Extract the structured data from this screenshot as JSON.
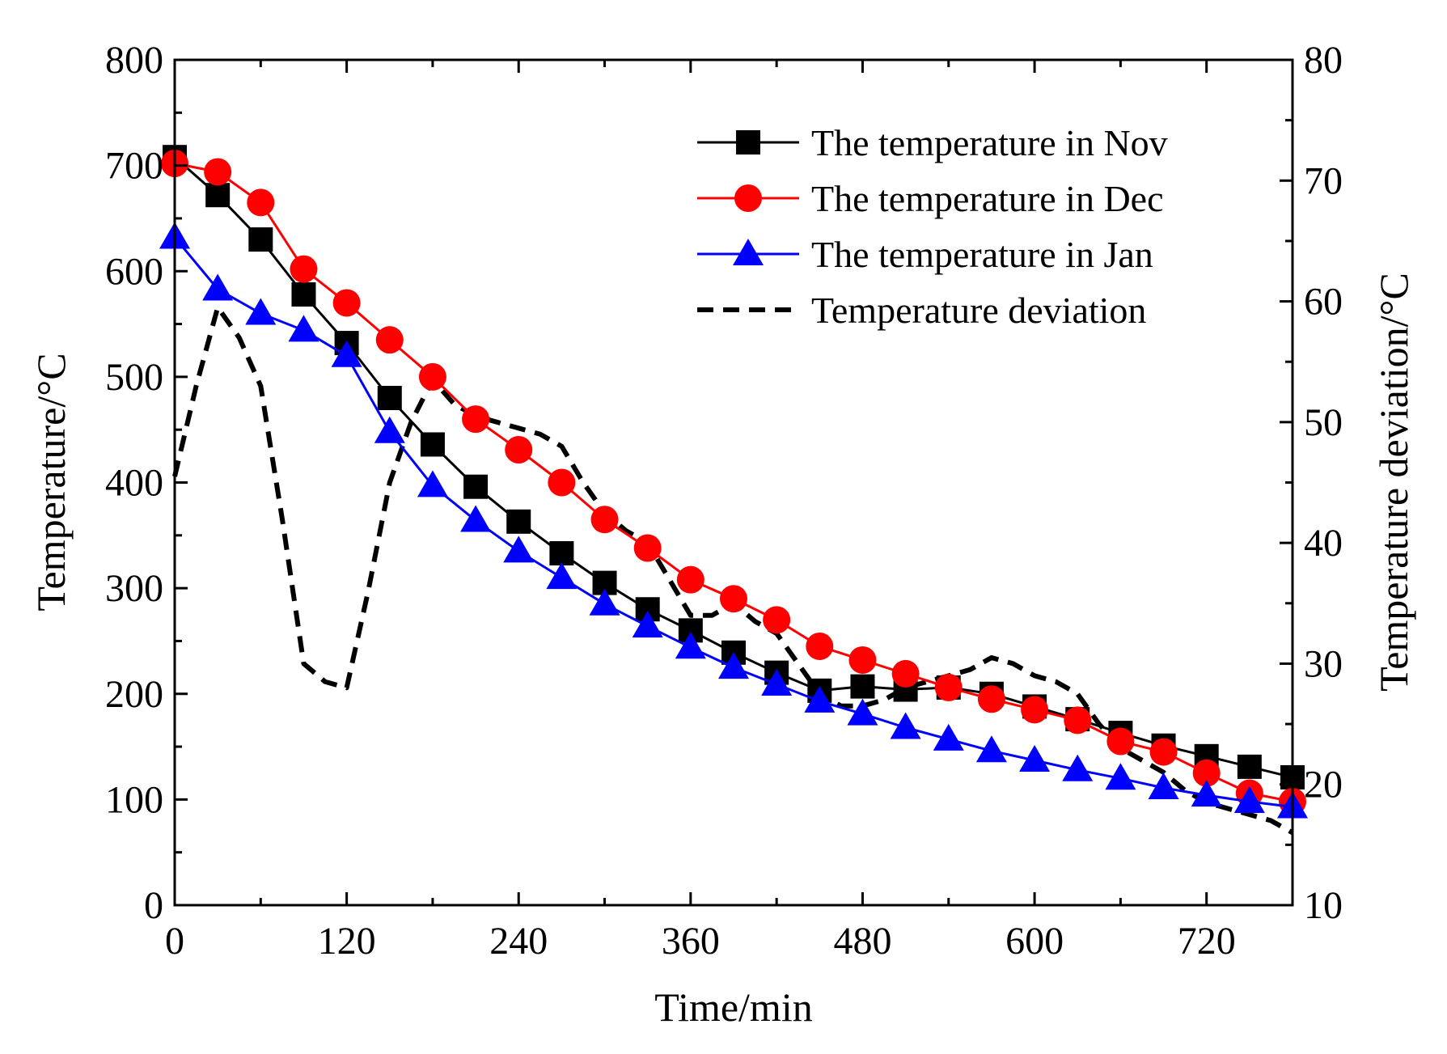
{
  "chart_data": {
    "type": "line",
    "title": "",
    "xlabel": "Time/min",
    "ylabel": "Temperature/°C",
    "y2label": "Temperature deviation/°C",
    "xlim": [
      0,
      780
    ],
    "ylim": [
      0,
      800
    ],
    "y2lim": [
      10,
      80
    ],
    "xticks": [
      0,
      120,
      240,
      360,
      480,
      600,
      720
    ],
    "yticks": [
      0,
      100,
      200,
      300,
      400,
      500,
      600,
      700,
      800
    ],
    "y2ticks": [
      10,
      20,
      30,
      40,
      50,
      60,
      70,
      80
    ],
    "grid": false,
    "legend_position": "top-right",
    "series": [
      {
        "name": "The temperature in Nov",
        "color": "#000000",
        "marker": "square",
        "axis": "left",
        "x": [
          0,
          30,
          60,
          90,
          120,
          150,
          180,
          210,
          240,
          270,
          300,
          330,
          360,
          390,
          420,
          450,
          480,
          510,
          540,
          570,
          600,
          630,
          660,
          690,
          720,
          750,
          780
        ],
        "values": [
          708,
          672,
          630,
          578,
          532,
          480,
          436,
          396,
          363,
          333,
          305,
          280,
          260,
          239,
          220,
          203,
          207,
          204,
          206,
          200,
          188,
          176,
          163,
          151,
          141,
          131,
          121
        ]
      },
      {
        "name": "The temperature in Dec",
        "color": "#ff0000",
        "marker": "circle",
        "axis": "left",
        "x": [
          0,
          30,
          60,
          90,
          120,
          150,
          180,
          210,
          240,
          270,
          300,
          330,
          360,
          390,
          420,
          450,
          480,
          510,
          540,
          570,
          600,
          630,
          660,
          690,
          720,
          750,
          780
        ],
        "values": [
          702,
          694,
          665,
          602,
          570,
          535,
          500,
          460,
          431,
          400,
          365,
          338,
          308,
          290,
          270,
          245,
          232,
          219,
          206,
          195,
          185,
          175,
          155,
          145,
          125,
          106,
          98
        ]
      },
      {
        "name": "The temperature in Jan",
        "color": "#0000ff",
        "marker": "triangle",
        "axis": "left",
        "x": [
          0,
          30,
          60,
          90,
          120,
          150,
          180,
          210,
          240,
          270,
          300,
          330,
          360,
          390,
          420,
          450,
          480,
          510,
          540,
          570,
          600,
          630,
          660,
          690,
          720,
          750,
          780
        ],
        "values": [
          632,
          583,
          560,
          544,
          520,
          448,
          397,
          364,
          335,
          310,
          285,
          264,
          244,
          225,
          209,
          193,
          181,
          168,
          157,
          146,
          137,
          128,
          120,
          111,
          104,
          98,
          93
        ]
      },
      {
        "name": "Temperature deviation",
        "color": "#000000",
        "style": "dashed",
        "axis": "right",
        "x": [
          0,
          15,
          30,
          45,
          60,
          75,
          90,
          105,
          120,
          135,
          150,
          165,
          180,
          195,
          210,
          225,
          240,
          255,
          270,
          285,
          300,
          315,
          330,
          345,
          360,
          375,
          390,
          405,
          420,
          435,
          450,
          465,
          480,
          495,
          510,
          525,
          540,
          555,
          570,
          585,
          600,
          615,
          630,
          645,
          660,
          675,
          690,
          705,
          720,
          735,
          750,
          765,
          780
        ],
        "values": [
          45.5,
          53,
          59.5,
          57,
          53,
          42,
          30,
          28.5,
          28,
          36,
          45,
          50,
          53.5,
          51.5,
          50.5,
          50,
          49.5,
          49,
          48,
          45,
          42.5,
          41,
          40,
          37,
          34,
          34,
          35,
          33.5,
          32.5,
          30,
          27.5,
          26.5,
          26.5,
          27,
          28,
          28.5,
          29,
          29.5,
          30.5,
          30,
          29,
          28.5,
          27.5,
          25,
          23,
          22,
          21,
          19.5,
          18.5,
          18,
          17.5,
          17,
          16
        ]
      }
    ]
  }
}
